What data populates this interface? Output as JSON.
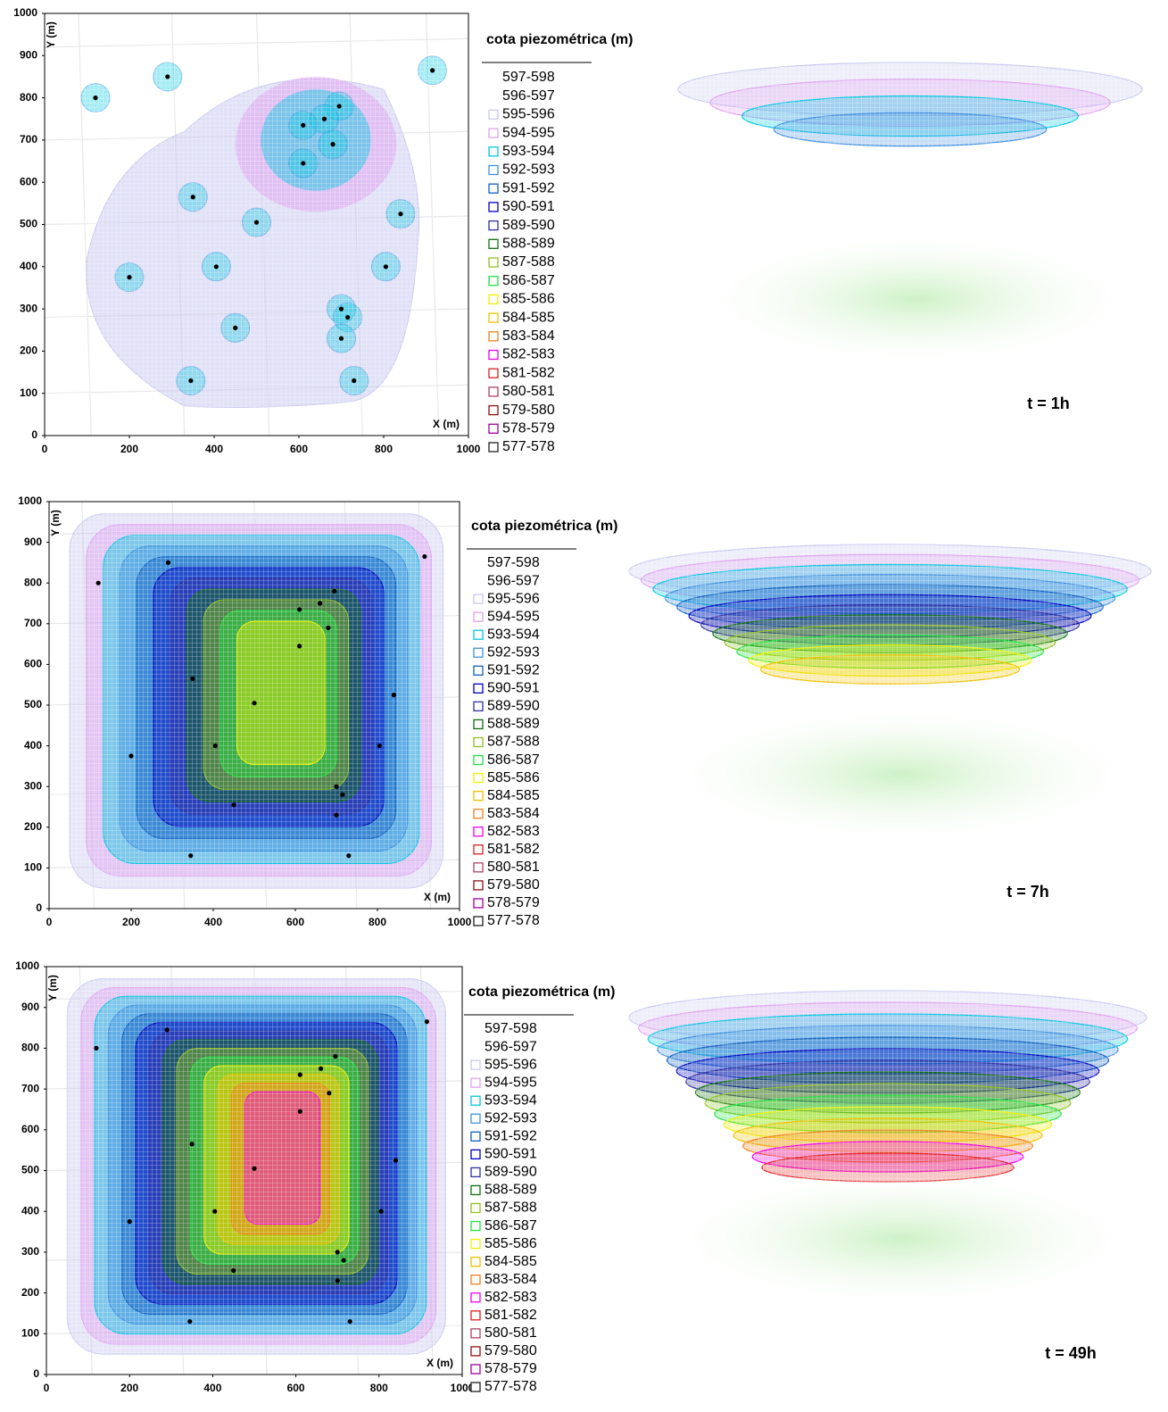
{
  "chart_data": [
    {
      "type": "scatter",
      "annotation": "t = 1h",
      "xlabel": "X (m)",
      "ylabel": "Y (m)",
      "legend_title": "cota piezométrica (m)",
      "x": [
        120,
        290,
        915,
        695,
        660,
        610,
        680,
        610,
        350,
        500,
        840,
        200,
        405,
        805,
        700,
        715,
        700,
        450,
        345,
        730
      ],
      "y": [
        800,
        850,
        865,
        780,
        750,
        735,
        690,
        645,
        565,
        505,
        525,
        375,
        400,
        400,
        300,
        280,
        230,
        255,
        130,
        130
      ],
      "xlim": [
        0,
        1000
      ],
      "ylim": [
        0,
        1000
      ],
      "xticks": [
        0,
        200,
        400,
        600,
        800,
        1000
      ],
      "yticks": [
        0,
        100,
        200,
        300,
        400,
        500,
        600,
        700,
        800,
        900,
        1000
      ],
      "levels": [
        {
          "label": "597-598",
          "color": null
        },
        {
          "label": "596-597",
          "color": null
        },
        {
          "label": "595-596",
          "color": "#c8c8f0"
        },
        {
          "label": "594-595",
          "color": "#e0a0f0"
        },
        {
          "label": "593-594",
          "color": "#00c8e0"
        },
        {
          "label": "592-593",
          "color": "#4090e0"
        },
        {
          "label": "591-592",
          "color": "#1060c0"
        },
        {
          "label": "590-591",
          "color": "#0000c0"
        },
        {
          "label": "589-590",
          "color": "#3030a0"
        },
        {
          "label": "588-589",
          "color": "#107010"
        },
        {
          "label": "587-588",
          "color": "#90c020"
        },
        {
          "label": "586-587",
          "color": "#20e040"
        },
        {
          "label": "585-586",
          "color": "#f0f000"
        },
        {
          "label": "584-585",
          "color": "#f0c000"
        },
        {
          "label": "583-584",
          "color": "#f08020"
        },
        {
          "label": "582-583",
          "color": "#f000f0"
        },
        {
          "label": "581-582",
          "color": "#e02020"
        },
        {
          "label": "580-581",
          "color": "#b04060"
        },
        {
          "label": "579-580",
          "color": "#901010"
        },
        {
          "label": "578-579",
          "color": "#a000a0"
        },
        {
          "label": "577-578",
          "color": "#202020"
        }
      ]
    },
    {
      "type": "scatter",
      "annotation": "t = 7h",
      "xlabel": "X (m)",
      "ylabel": "Y (m)",
      "legend_title": "cota piezométrica (m)",
      "x": [
        120,
        290,
        915,
        695,
        660,
        610,
        680,
        610,
        350,
        500,
        840,
        200,
        405,
        805,
        700,
        715,
        700,
        450,
        345,
        730
      ],
      "y": [
        800,
        850,
        865,
        780,
        750,
        735,
        690,
        645,
        565,
        505,
        525,
        375,
        400,
        400,
        300,
        280,
        230,
        255,
        130,
        130
      ],
      "xlim": [
        0,
        1000
      ],
      "ylim": [
        0,
        1000
      ],
      "xticks": [
        0,
        200,
        400,
        600,
        800,
        1000
      ],
      "yticks": [
        0,
        100,
        200,
        300,
        400,
        500,
        600,
        700,
        800,
        900,
        1000
      ],
      "levels": [
        {
          "label": "597-598",
          "color": null
        },
        {
          "label": "596-597",
          "color": null
        },
        {
          "label": "595-596",
          "color": "#c8c8f0"
        },
        {
          "label": "594-595",
          "color": "#e0a0f0"
        },
        {
          "label": "593-594",
          "color": "#00c8e0"
        },
        {
          "label": "592-593",
          "color": "#4090e0"
        },
        {
          "label": "591-592",
          "color": "#1060c0"
        },
        {
          "label": "590-591",
          "color": "#0000c0"
        },
        {
          "label": "589-590",
          "color": "#3030a0"
        },
        {
          "label": "588-589",
          "color": "#107010"
        },
        {
          "label": "587-588",
          "color": "#90c020"
        },
        {
          "label": "586-587",
          "color": "#20e040"
        },
        {
          "label": "585-586",
          "color": "#f0f000"
        },
        {
          "label": "584-585",
          "color": "#f0c000"
        },
        {
          "label": "583-584",
          "color": "#f08020"
        },
        {
          "label": "582-583",
          "color": "#f000f0"
        },
        {
          "label": "581-582",
          "color": "#e02020"
        },
        {
          "label": "580-581",
          "color": "#b04060"
        },
        {
          "label": "579-580",
          "color": "#901010"
        },
        {
          "label": "578-579",
          "color": "#a000a0"
        },
        {
          "label": "577-578",
          "color": "#202020"
        }
      ]
    },
    {
      "type": "scatter",
      "annotation": "t = 49h",
      "xlabel": "X (m)",
      "ylabel": "Y (m)",
      "legend_title": "cota piezométrica (m)",
      "x": [
        120,
        290,
        915,
        695,
        660,
        610,
        680,
        610,
        350,
        500,
        840,
        200,
        405,
        805,
        700,
        715,
        700,
        450,
        345,
        730
      ],
      "y": [
        800,
        845,
        865,
        780,
        750,
        735,
        690,
        645,
        565,
        505,
        525,
        375,
        400,
        400,
        300,
        280,
        230,
        255,
        130,
        130
      ],
      "xlim": [
        0,
        1000
      ],
      "ylim": [
        0,
        1000
      ],
      "xticks": [
        0,
        200,
        400,
        600,
        800,
        1000
      ],
      "yticks": [
        0,
        100,
        200,
        300,
        400,
        500,
        600,
        700,
        800,
        900,
        1000
      ],
      "levels": [
        {
          "label": "597-598",
          "color": null
        },
        {
          "label": "596-597",
          "color": null
        },
        {
          "label": "595-596",
          "color": "#c8c8f0"
        },
        {
          "label": "594-595",
          "color": "#e0a0f0"
        },
        {
          "label": "593-594",
          "color": "#00c8e0"
        },
        {
          "label": "592-593",
          "color": "#4090e0"
        },
        {
          "label": "591-592",
          "color": "#1060c0"
        },
        {
          "label": "590-591",
          "color": "#0000c0"
        },
        {
          "label": "589-590",
          "color": "#3030a0"
        },
        {
          "label": "588-589",
          "color": "#107010"
        },
        {
          "label": "587-588",
          "color": "#90c020"
        },
        {
          "label": "586-587",
          "color": "#20e040"
        },
        {
          "label": "585-586",
          "color": "#f0f000"
        },
        {
          "label": "584-585",
          "color": "#f0c000"
        },
        {
          "label": "583-584",
          "color": "#f08020"
        },
        {
          "label": "582-583",
          "color": "#f000f0"
        },
        {
          "label": "581-582",
          "color": "#e02020"
        },
        {
          "label": "580-581",
          "color": "#b04060"
        },
        {
          "label": "579-580",
          "color": "#901010"
        },
        {
          "label": "578-579",
          "color": "#a000a0"
        },
        {
          "label": "577-578",
          "color": "#202020"
        }
      ]
    }
  ]
}
